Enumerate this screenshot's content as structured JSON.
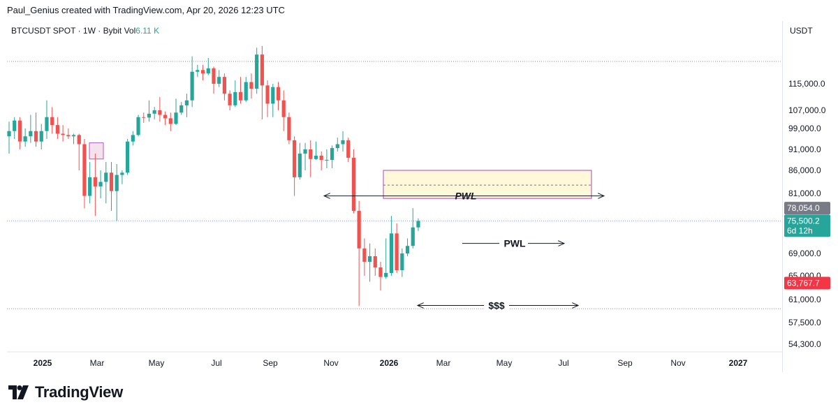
{
  "header": {
    "attribution": "Paul_Genius created with TradingView.com, Apr 20, 2026 12:23 UTC"
  },
  "chart_data": {
    "type": "candlestick",
    "symbol_line": {
      "symbol": "BTCUSDT SPOT · 1W · Bybit",
      "vol_label": "Vol",
      "vol_value": "6.11 K"
    },
    "currency": "USDT",
    "x_labels": [
      "2025",
      "Mar",
      "May",
      "Jul",
      "Sep",
      "Nov",
      "2026",
      "Mar",
      "May",
      "Jul",
      "Sep",
      "Nov",
      "2027"
    ],
    "y_ticks": [
      "115,000.0",
      "107,000.0",
      "99,000.0",
      "91,000.0",
      "86,000.0",
      "81,000.0",
      "69,000.0",
      "65,000.0",
      "61,000.0",
      "57,500.0",
      "54,300.0"
    ],
    "y_tick_values": [
      115000,
      107000,
      99000,
      91000,
      86000,
      81000,
      69000,
      65000,
      61000,
      57500,
      54300
    ],
    "price_labels": {
      "high": "78,054.0",
      "last": "75,500.2",
      "countdown": "6d 12h",
      "low": "63,767.7"
    },
    "price_label_values": {
      "high": 78054,
      "last": 75500.2,
      "low": 63767.7
    },
    "levels": {
      "top_dotted": 121500,
      "last_dotted": 75500,
      "bottom_dotted": 59600
    },
    "zones": [
      {
        "name": "daily-box",
        "top": 86000,
        "bottom": 80000,
        "dashed_mid": 82800,
        "fill": "#fff8d9",
        "stroke": "#ab47bc"
      },
      {
        "name": "small-box",
        "top": 93500,
        "bottom": 88700,
        "fill": "#f3e0ea",
        "stroke": "#ab47bc"
      }
    ],
    "annotations": [
      {
        "label": "PWL",
        "style": "italic",
        "y": 80500,
        "bidirectional": true
      },
      {
        "label": "PWL",
        "style": "bold",
        "y": 71000,
        "bidirectional": false
      },
      {
        "label": "$$$",
        "style": "bold",
        "y": 60100,
        "bidirectional": true
      }
    ],
    "colors": {
      "up": "#26a69a",
      "down": "#ef5350",
      "grid": "#e0e3eb",
      "zone_stroke": "#ab47bc",
      "high_label": "#787b86",
      "low_label": "#f23645"
    },
    "candles": [
      [
        96000,
        102000,
        90000,
        98000
      ],
      [
        98000,
        104000,
        95000,
        102500
      ],
      [
        102500,
        104000,
        91000,
        94000
      ],
      [
        94000,
        99000,
        92000,
        96000
      ],
      [
        96000,
        105000,
        93500,
        98000
      ],
      [
        98000,
        106000,
        92000,
        94000
      ],
      [
        94000,
        101000,
        91000,
        98000
      ],
      [
        98000,
        110000,
        95000,
        104000
      ],
      [
        104000,
        108000,
        97000,
        100500
      ],
      [
        100500,
        104000,
        95000,
        97000
      ],
      [
        97000,
        100500,
        94000,
        96500
      ],
      [
        96500,
        99000,
        95000,
        96000
      ],
      [
        96000,
        97000,
        93000,
        96500
      ],
      [
        96500,
        97000,
        86000,
        93000
      ],
      [
        93000,
        95000,
        78000,
        80500
      ],
      [
        80500,
        88000,
        79000,
        84500
      ],
      [
        84500,
        90000,
        76500,
        82500
      ],
      [
        82500,
        86000,
        80000,
        83500
      ],
      [
        83500,
        88000,
        79000,
        85500
      ],
      [
        85500,
        88000,
        77500,
        81500
      ],
      [
        81500,
        87500,
        75500,
        85000
      ],
      [
        85000,
        86000,
        83000,
        85500
      ],
      [
        85500,
        95000,
        85000,
        94000
      ],
      [
        94000,
        98000,
        92500,
        96500
      ],
      [
        96500,
        105000,
        96000,
        104000
      ],
      [
        104000,
        106000,
        101500,
        103800
      ],
      [
        103800,
        110000,
        102000,
        105500
      ],
      [
        105500,
        108000,
        103000,
        107000
      ],
      [
        107000,
        111000,
        102000,
        105000
      ],
      [
        105000,
        106500,
        100500,
        103500
      ],
      [
        103500,
        106000,
        98000,
        101000
      ],
      [
        101000,
        110500,
        100500,
        106000
      ],
      [
        106000,
        109500,
        105000,
        108500
      ],
      [
        108500,
        112000,
        104000,
        110000
      ],
      [
        110000,
        123000,
        108000,
        118500
      ],
      [
        118500,
        120500,
        117000,
        119000
      ],
      [
        119000,
        120500,
        116000,
        118000
      ],
      [
        118000,
        122500,
        117500,
        119500
      ],
      [
        119500,
        120000,
        112000,
        115000
      ],
      [
        115000,
        119000,
        114000,
        117000
      ],
      [
        117000,
        118000,
        110000,
        112000
      ],
      [
        112000,
        113000,
        107000,
        108500
      ],
      [
        108500,
        116000,
        108000,
        112500
      ],
      [
        112500,
        117000,
        109000,
        110000
      ],
      [
        110000,
        117000,
        109500,
        115500
      ],
      [
        115500,
        118000,
        110500,
        113500
      ],
      [
        113500,
        125500,
        112000,
        123500
      ],
      [
        123500,
        126000,
        103000,
        114500
      ],
      [
        114500,
        116000,
        104000,
        109000
      ],
      [
        109000,
        115000,
        104000,
        114000
      ],
      [
        114000,
        115500,
        107000,
        110000
      ],
      [
        110000,
        113000,
        98000,
        104000
      ],
      [
        104000,
        106000,
        93000,
        94500
      ],
      [
        94500,
        96000,
        80500,
        84500
      ],
      [
        84500,
        93500,
        84000,
        90000
      ],
      [
        90000,
        93500,
        86000,
        91000
      ],
      [
        91000,
        94500,
        84500,
        88700
      ],
      [
        88700,
        94000,
        88500,
        89500
      ],
      [
        89500,
        90500,
        86000,
        88500
      ],
      [
        88500,
        91000,
        86500,
        88500
      ],
      [
        88500,
        92500,
        86500,
        91500
      ],
      [
        91500,
        95500,
        90500,
        93000
      ],
      [
        93000,
        98000,
        90500,
        94500
      ],
      [
        94500,
        95500,
        88000,
        89000
      ],
      [
        89000,
        91000,
        77000,
        77500
      ],
      [
        77500,
        79500,
        60000,
        70000
      ],
      [
        70000,
        72000,
        65000,
        67500
      ],
      [
        67500,
        71000,
        64000,
        68500
      ],
      [
        68500,
        70000,
        65000,
        66500
      ],
      [
        66500,
        67500,
        62500,
        64800
      ],
      [
        64800,
        72000,
        64500,
        65500
      ],
      [
        65500,
        76500,
        65000,
        73000
      ],
      [
        73000,
        75000,
        65500,
        66000
      ],
      [
        66000,
        70000,
        64800,
        69000
      ],
      [
        69000,
        72000,
        68500,
        70500
      ],
      [
        70500,
        78054,
        70000,
        74200
      ],
      [
        74200,
        76000,
        73500,
        75500
      ]
    ]
  }
}
